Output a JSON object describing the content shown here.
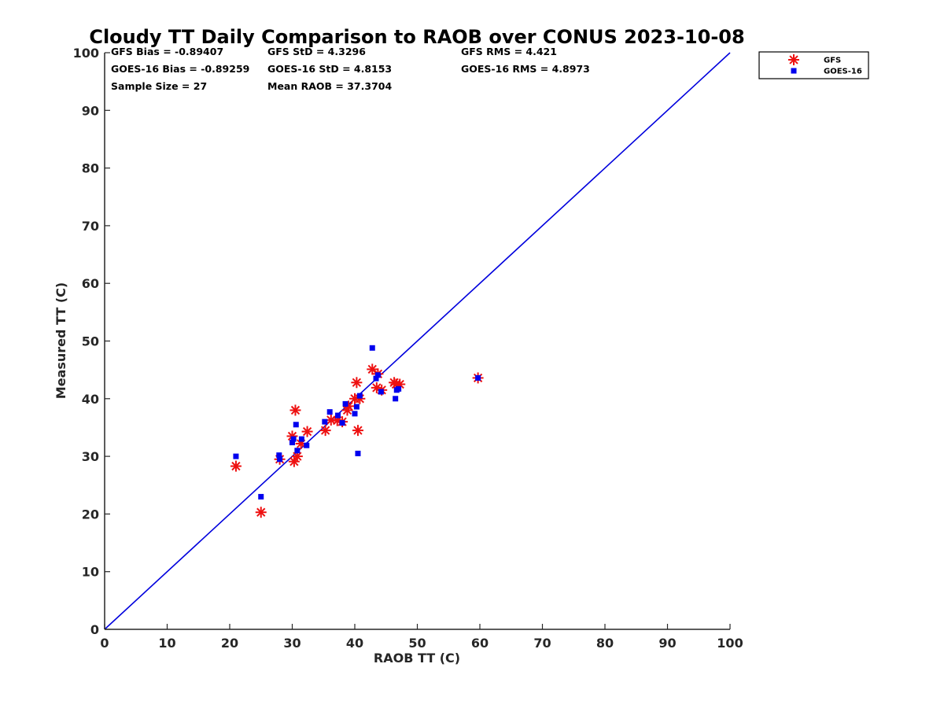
{
  "chart_data": {
    "type": "scatter",
    "title": "Cloudy TT Daily Comparison to RAOB over CONUS 2023-10-08",
    "xlabel": "RAOB TT (C)",
    "ylabel": "Measured TT (C)",
    "xlim": [
      0,
      100
    ],
    "ylim": [
      0,
      100
    ],
    "xticks": [
      "0",
      "10",
      "20",
      "30",
      "40",
      "50",
      "60",
      "70",
      "80",
      "90",
      "100"
    ],
    "yticks": [
      "0",
      "10",
      "20",
      "30",
      "40",
      "50",
      "60",
      "70",
      "80",
      "90",
      "100"
    ],
    "grid": false,
    "legend_position": "top-right",
    "stats": [
      [
        "GFS Bias = -0.89407",
        "GFS StD = 4.3296",
        "GFS RMS = 4.421"
      ],
      [
        "GOES-16 Bias = -0.89259",
        "GOES-16 StD = 4.8153",
        "GOES-16 RMS = 4.8973"
      ],
      [
        "Sample Size = 27",
        "Mean RAOB = 37.3704"
      ]
    ],
    "reference_line": {
      "x": [
        0,
        100
      ],
      "y": [
        0,
        100
      ],
      "color": "#0000dd"
    },
    "series": [
      {
        "name": "GFS",
        "marker": "asterisk",
        "color": "#ee1111",
        "points": [
          [
            21.0,
            28.3
          ],
          [
            25.0,
            20.3
          ],
          [
            28.0,
            29.5
          ],
          [
            30.0,
            33.5
          ],
          [
            30.3,
            29.1
          ],
          [
            30.5,
            38.0
          ],
          [
            30.8,
            30.0
          ],
          [
            32.4,
            34.3
          ],
          [
            35.3,
            34.5
          ],
          [
            36.2,
            36.3
          ],
          [
            37.2,
            36.2
          ],
          [
            38.0,
            36.0
          ],
          [
            38.8,
            38.0
          ],
          [
            40.0,
            40.0
          ],
          [
            40.3,
            42.8
          ],
          [
            40.5,
            34.5
          ],
          [
            40.8,
            40.0
          ],
          [
            42.8,
            45.1
          ],
          [
            43.5,
            41.9
          ],
          [
            44.3,
            41.5
          ],
          [
            46.3,
            42.8
          ],
          [
            46.6,
            42.5
          ],
          [
            47.2,
            42.5
          ],
          [
            59.7,
            43.6
          ],
          [
            43.7,
            44.3
          ],
          [
            31.4,
            32.2
          ],
          [
            39.0,
            38.7
          ]
        ]
      },
      {
        "name": "GOES-16",
        "marker": "square",
        "color": "#0000ee",
        "points": [
          [
            21.0,
            30.0
          ],
          [
            25.0,
            23.0
          ],
          [
            27.9,
            30.2
          ],
          [
            28.0,
            29.5
          ],
          [
            30.0,
            32.4
          ],
          [
            30.2,
            33.0
          ],
          [
            30.6,
            35.5
          ],
          [
            30.8,
            31.0
          ],
          [
            31.5,
            33.0
          ],
          [
            32.3,
            31.9
          ],
          [
            35.2,
            36.0
          ],
          [
            36.0,
            37.7
          ],
          [
            37.3,
            37.1
          ],
          [
            38.0,
            35.8
          ],
          [
            38.5,
            39.1
          ],
          [
            40.0,
            37.4
          ],
          [
            40.3,
            38.6
          ],
          [
            40.5,
            30.5
          ],
          [
            40.8,
            40.5
          ],
          [
            42.8,
            48.8
          ],
          [
            43.4,
            43.5
          ],
          [
            43.7,
            44.1
          ],
          [
            44.2,
            41.2
          ],
          [
            46.5,
            40.0
          ],
          [
            46.7,
            41.5
          ],
          [
            47.0,
            41.7
          ],
          [
            59.7,
            43.6
          ]
        ]
      }
    ]
  }
}
